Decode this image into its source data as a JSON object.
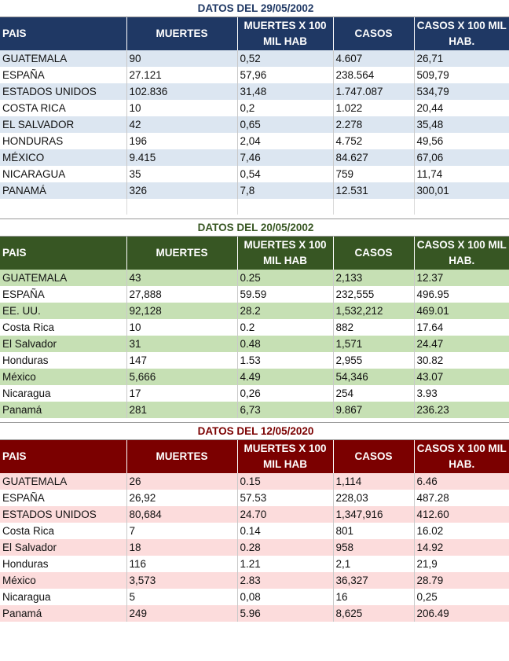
{
  "headers": {
    "pais": "PAIS",
    "muertes": "MUERTES",
    "muertes_x100": "MUERTES X 100 MIL HAB",
    "casos": "CASOS",
    "casos_x100": "CASOS X 100 MIL HAB."
  },
  "tables": [
    {
      "title": "DATOS DEL 29/05/2002",
      "rows": [
        {
          "pais": "GUATEMALA",
          "muertes": "90",
          "muertes_x100": "0,52",
          "casos": "4.607",
          "casos_x100": "26,71"
        },
        {
          "pais": "ESPAÑA",
          "muertes": "27.121",
          "muertes_x100": "57,96",
          "casos": "238.564",
          "casos_x100": "509,79"
        },
        {
          "pais": "ESTADOS UNIDOS",
          "muertes": "102.836",
          "muertes_x100": "31,48",
          "casos": "1.747.087",
          "casos_x100": "534,79"
        },
        {
          "pais": "COSTA RICA",
          "muertes": "10",
          "muertes_x100": "0,2",
          "casos": "1.022",
          "casos_x100": "20,44"
        },
        {
          "pais": "EL SALVADOR",
          "muertes": "42",
          "muertes_x100": "0,65",
          "casos": "2.278",
          "casos_x100": "35,48"
        },
        {
          "pais": "HONDURAS",
          "muertes": "196",
          "muertes_x100": "2,04",
          "casos": "4.752",
          "casos_x100": "49,56"
        },
        {
          "pais": "MÉXICO",
          "muertes": "9.415",
          "muertes_x100": "7,46",
          "casos": "84.627",
          "casos_x100": "67,06"
        },
        {
          "pais": "NICARAGUA",
          "muertes": "35",
          "muertes_x100": "0,54",
          "casos": "759",
          "casos_x100": "11,74"
        },
        {
          "pais": "PANAMÁ",
          "muertes": "326",
          "muertes_x100": "7,8",
          "casos": "12.531",
          "casos_x100": "300,01"
        }
      ]
    },
    {
      "title": "DATOS DEL 20/05/2002",
      "rows": [
        {
          "pais": "GUATEMALA",
          "muertes": " 43",
          "muertes_x100": "0.25",
          "casos": "2,133",
          "casos_x100": "12.37"
        },
        {
          "pais": "ESPAÑA",
          "muertes": "27,888",
          "muertes_x100": "59.59",
          "casos": "232,555",
          "casos_x100": "496.95"
        },
        {
          "pais": "EE. UU.",
          "muertes": "92,128",
          "muertes_x100": "28.2",
          "casos": "1,532,212",
          "casos_x100": "469.01"
        },
        {
          "pais": "Costa Rica",
          "muertes": "10",
          "muertes_x100": "0.2",
          "casos": "882",
          "casos_x100": "17.64"
        },
        {
          "pais": "El Salvador",
          "muertes": "31",
          "muertes_x100": "0.48",
          "casos": "1,571",
          "casos_x100": "24.47"
        },
        {
          "pais": "Honduras",
          "muertes": "147",
          "muertes_x100": "1.53",
          "casos": "2,955",
          "casos_x100": "30.82"
        },
        {
          "pais": "México",
          "muertes": "5,666",
          "muertes_x100": "4.49",
          "casos": "54,346",
          "casos_x100": "43.07"
        },
        {
          "pais": "Nicaragua",
          "muertes": " 17",
          "muertes_x100": "0,26",
          "casos": "254",
          "casos_x100": "3.93"
        },
        {
          "pais": "Panamá",
          "muertes": "281",
          "muertes_x100": "6,73",
          "casos": "9.867",
          "casos_x100": "236.23"
        }
      ]
    },
    {
      "title": "DATOS DEL 12/05/2020",
      "rows": [
        {
          "pais": "GUATEMALA",
          "muertes": "26",
          "muertes_x100": "0.15",
          "casos": "1,114",
          "casos_x100": "6.46"
        },
        {
          "pais": "ESPAÑA",
          "muertes": "26,92",
          "muertes_x100": "57.53",
          "casos": "228,03",
          "casos_x100": "487.28"
        },
        {
          "pais": "ESTADOS UNIDOS",
          "muertes": "80,684",
          "muertes_x100": "24.70",
          "casos": "1,347,916",
          "casos_x100": "412.60"
        },
        {
          "pais": "Costa Rica",
          "muertes": "7",
          "muertes_x100": "0.14",
          "casos": "801",
          "casos_x100": "16.02"
        },
        {
          "pais": "El Salvador",
          "muertes": "18",
          "muertes_x100": "0.28",
          "casos": "958",
          "casos_x100": "14.92"
        },
        {
          "pais": "Honduras",
          "muertes": "116",
          "muertes_x100": "1.21",
          "casos": "2,1",
          "casos_x100": "21,9"
        },
        {
          "pais": "México",
          "muertes": "3,573",
          "muertes_x100": "2.83",
          "casos": "36,327",
          "casos_x100": "28.79"
        },
        {
          "pais": "Nicaragua",
          "muertes": "5",
          "muertes_x100": "0,08",
          "casos": "16",
          "casos_x100": "0,25"
        },
        {
          "pais": "Panamá",
          "muertes": "249",
          "muertes_x100": "5.96",
          "casos": "8,625",
          "casos_x100": "206.49"
        }
      ]
    }
  ]
}
